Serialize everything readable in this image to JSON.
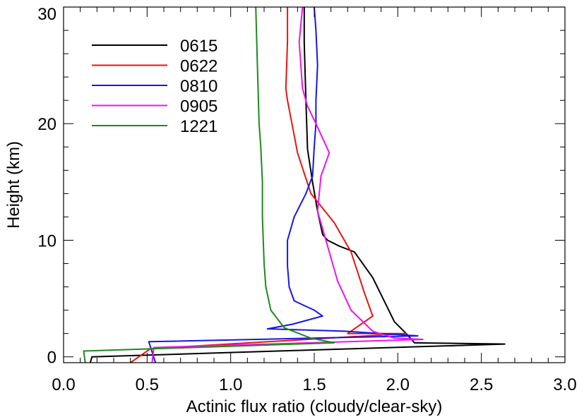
{
  "chart_data": {
    "type": "line",
    "title": "",
    "xlabel": "Actinic flux ratio (cloudy/clear-sky)",
    "ylabel": "Height (km)",
    "xlim": [
      0.0,
      3.0
    ],
    "ylim": [
      -0.5,
      30
    ],
    "xticks": [
      {
        "value": 0.0,
        "label": "0.0"
      },
      {
        "value": 0.5,
        "label": "0.5"
      },
      {
        "value": 1.0,
        "label": "1.0"
      },
      {
        "value": 1.5,
        "label": "1.5"
      },
      {
        "value": 2.0,
        "label": "2.0"
      },
      {
        "value": 2.5,
        "label": "2.5"
      },
      {
        "value": 3.0,
        "label": "3.0"
      }
    ],
    "yticks": [
      {
        "value": 0,
        "label": "0"
      },
      {
        "value": 10,
        "label": "10"
      },
      {
        "value": 20,
        "label": "20"
      },
      {
        "value": 30,
        "label": "30"
      }
    ],
    "grid": false,
    "legend_position": "top-left",
    "series": [
      {
        "name": "0615",
        "color": "#000000",
        "points": [
          [
            0.16,
            -0.5
          ],
          [
            0.17,
            0.0
          ],
          [
            2.64,
            1.1
          ],
          [
            2.1,
            1.2
          ],
          [
            2.05,
            2.0
          ],
          [
            1.98,
            3.0
          ],
          [
            1.85,
            6.8
          ],
          [
            1.74,
            9.0
          ],
          [
            1.65,
            9.5
          ],
          [
            1.58,
            10.0
          ],
          [
            1.55,
            10.5
          ],
          [
            1.52,
            12.5
          ],
          [
            1.49,
            15.0
          ],
          [
            1.46,
            17.8
          ],
          [
            1.45,
            22.0
          ],
          [
            1.44,
            27.0
          ],
          [
            1.44,
            30.0
          ]
        ]
      },
      {
        "name": "0622",
        "color": "#e8140f",
        "points": [
          [
            0.4,
            -0.5
          ],
          [
            0.52,
            0.7
          ],
          [
            2.05,
            2.0
          ],
          [
            1.7,
            2.0
          ],
          [
            1.85,
            3.5
          ],
          [
            1.8,
            5.5
          ],
          [
            1.72,
            9.0
          ],
          [
            1.62,
            11.5
          ],
          [
            1.48,
            14.0
          ],
          [
            1.4,
            17.5
          ],
          [
            1.38,
            19.0
          ],
          [
            1.34,
            22.0
          ],
          [
            1.33,
            23.0
          ],
          [
            1.34,
            27.0
          ],
          [
            1.34,
            30.0
          ]
        ]
      },
      {
        "name": "0810",
        "color": "#1616e8",
        "points": [
          [
            0.55,
            -0.5
          ],
          [
            0.51,
            1.3
          ],
          [
            2.12,
            1.8
          ],
          [
            1.68,
            2.2
          ],
          [
            1.22,
            2.4
          ],
          [
            1.37,
            2.8
          ],
          [
            1.55,
            3.5
          ],
          [
            1.5,
            4.0
          ],
          [
            1.38,
            4.8
          ],
          [
            1.35,
            6.0
          ],
          [
            1.34,
            7.8
          ],
          [
            1.34,
            10.0
          ],
          [
            1.38,
            12.0
          ],
          [
            1.45,
            14.0
          ],
          [
            1.49,
            15.5
          ],
          [
            1.5,
            18.0
          ],
          [
            1.51,
            20.0
          ],
          [
            1.51,
            22.0
          ],
          [
            1.52,
            25.0
          ],
          [
            1.51,
            28.0
          ],
          [
            1.5,
            30.0
          ]
        ]
      },
      {
        "name": "0905",
        "color": "#ee12ee",
        "points": [
          [
            0.53,
            -0.5
          ],
          [
            0.54,
            0.8
          ],
          [
            2.15,
            1.5
          ],
          [
            1.98,
            1.6
          ],
          [
            1.85,
            2.2
          ],
          [
            1.72,
            4.0
          ],
          [
            1.64,
            6.5
          ],
          [
            1.58,
            9.5
          ],
          [
            1.52,
            12.5
          ],
          [
            1.54,
            15.5
          ],
          [
            1.59,
            17.5
          ],
          [
            1.51,
            20.0
          ],
          [
            1.46,
            21.5
          ],
          [
            1.43,
            23.0
          ],
          [
            1.41,
            27.0
          ],
          [
            1.43,
            30.0
          ]
        ]
      },
      {
        "name": "1221",
        "color": "#1d8a1d",
        "points": [
          [
            0.13,
            -0.5
          ],
          [
            0.12,
            0.5
          ],
          [
            1.62,
            1.2
          ],
          [
            1.48,
            1.6
          ],
          [
            1.32,
            2.5
          ],
          [
            1.24,
            4.0
          ],
          [
            1.21,
            6.0
          ],
          [
            1.2,
            8.0
          ],
          [
            1.19,
            12.0
          ],
          [
            1.19,
            15.0
          ],
          [
            1.18,
            18.0
          ],
          [
            1.17,
            20.0
          ],
          [
            1.16,
            25.0
          ],
          [
            1.15,
            30.0
          ]
        ]
      }
    ]
  }
}
